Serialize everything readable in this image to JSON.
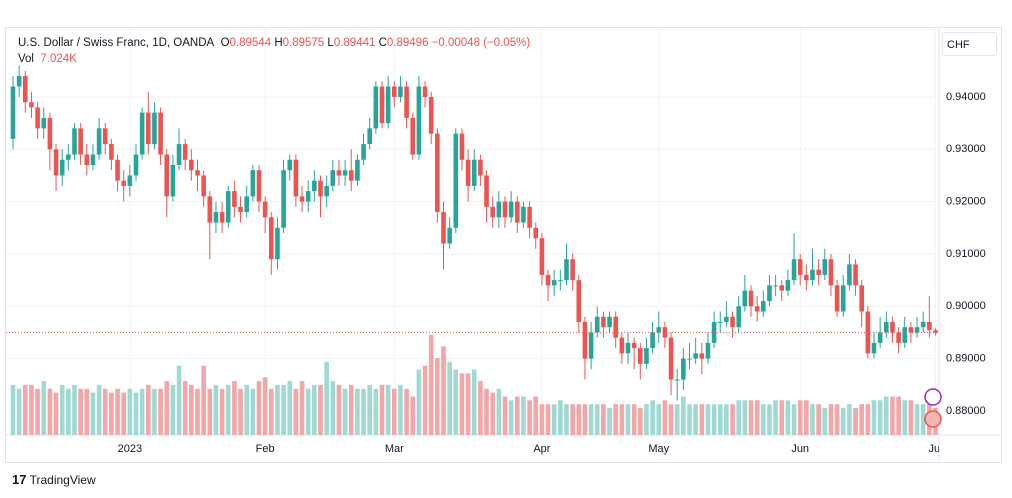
{
  "header": {
    "symbol": "U.S. Dollar / Swiss Franc, 1D, OANDA",
    "o_label": "O",
    "h_label": "H",
    "l_label": "L",
    "c_label": "C",
    "change": "−0.00048 (−0.05%)",
    "vol_label": "Vol",
    "vol_value": "7.024K",
    "currency": "CHF"
  },
  "footer": {
    "brand": "TradingView"
  },
  "chart_data": {
    "type": "candlestick",
    "categories": [
      null,
      null,
      null,
      null,
      null,
      null,
      null,
      null,
      null,
      null,
      null,
      null,
      null,
      null,
      null,
      null,
      null,
      null,
      null,
      "2023",
      null,
      null,
      null,
      null,
      null,
      null,
      null,
      null,
      null,
      null,
      null,
      null,
      null,
      null,
      null,
      null,
      null,
      null,
      null,
      null,
      null,
      "Feb",
      null,
      null,
      null,
      null,
      null,
      null,
      null,
      null,
      null,
      null,
      null,
      null,
      null,
      null,
      null,
      null,
      null,
      null,
      null,
      null,
      "Mar",
      null,
      null,
      null,
      null,
      null,
      null,
      null,
      null,
      null,
      null,
      null,
      null,
      null,
      null,
      null,
      null,
      null,
      null,
      null,
      null,
      null,
      null,
      null,
      "Apr",
      null,
      null,
      null,
      null,
      null,
      null,
      null,
      null,
      null,
      null,
      null,
      null,
      null,
      null,
      null,
      null,
      null,
      null,
      "May",
      null,
      null,
      null,
      null,
      null,
      null,
      null,
      null,
      null,
      null,
      null,
      null,
      null,
      null,
      null,
      null,
      null,
      null,
      null,
      null,
      null,
      null,
      "Jun",
      null,
      null,
      null,
      null,
      null,
      null,
      null,
      null,
      null,
      null,
      null,
      null,
      null,
      null,
      null,
      null,
      null,
      null,
      null,
      null,
      null,
      "Jul"
    ],
    "open": [
      0.932,
      0.942,
      0.944,
      0.939,
      0.938,
      0.934,
      0.936,
      0.93,
      0.925,
      0.928,
      0.929,
      0.934,
      0.929,
      0.927,
      0.929,
      0.934,
      0.931,
      0.928,
      0.924,
      0.923,
      0.925,
      0.929,
      0.937,
      0.931,
      0.937,
      0.929,
      0.921,
      0.927,
      0.931,
      0.928,
      0.926,
      0.925,
      0.921,
      0.916,
      0.918,
      0.916,
      0.922,
      0.919,
      0.918,
      0.921,
      0.926,
      0.92,
      0.917,
      0.909,
      0.915,
      0.926,
      0.928,
      0.921,
      0.92,
      0.922,
      0.924,
      0.921,
      0.923,
      0.926,
      0.925,
      0.926,
      0.924,
      0.928,
      0.931,
      0.934,
      0.942,
      0.935,
      0.942,
      0.94,
      0.942,
      0.936,
      0.929,
      0.942,
      0.94,
      0.933,
      0.918,
      0.912,
      0.915,
      0.933,
      0.928,
      0.923,
      0.928,
      0.925,
      0.919,
      0.917,
      0.92,
      0.917,
      0.92,
      0.916,
      0.919,
      0.915,
      0.913,
      0.906,
      0.904,
      0.905,
      0.905,
      0.909,
      0.905,
      0.897,
      0.89,
      0.895,
      0.898,
      0.896,
      0.898,
      0.894,
      0.891,
      0.893,
      0.892,
      0.889,
      0.892,
      0.895,
      0.896,
      0.894,
      0.886,
      0.886,
      0.89,
      0.89,
      0.891,
      0.89,
      0.893,
      0.897,
      0.897,
      0.898,
      0.896,
      0.9,
      0.903,
      0.9,
      0.899,
      0.901,
      0.904,
      0.904,
      0.903,
      0.905,
      0.909,
      0.906,
      0.905,
      0.907,
      0.906,
      0.909,
      0.904,
      0.899,
      0.904,
      0.908,
      0.904,
      0.899,
      0.891,
      0.893,
      0.895,
      0.897,
      0.895,
      0.893,
      0.896,
      0.895,
      0.896,
      0.897,
      0.89544
    ],
    "high": [
      0.944,
      0.946,
      0.945,
      0.941,
      0.939,
      0.938,
      0.937,
      0.931,
      0.93,
      0.931,
      0.935,
      0.935,
      0.931,
      0.931,
      0.936,
      0.935,
      0.932,
      0.929,
      0.926,
      0.927,
      0.931,
      0.938,
      0.941,
      0.939,
      0.938,
      0.93,
      0.929,
      0.934,
      0.932,
      0.93,
      0.928,
      0.926,
      0.922,
      0.92,
      0.92,
      0.923,
      0.924,
      0.921,
      0.923,
      0.927,
      0.927,
      0.921,
      0.918,
      0.917,
      0.928,
      0.929,
      0.929,
      0.923,
      0.924,
      0.926,
      0.925,
      0.925,
      0.928,
      0.928,
      0.928,
      0.93,
      0.929,
      0.933,
      0.936,
      0.943,
      0.943,
      0.944,
      0.943,
      0.944,
      0.943,
      0.937,
      0.944,
      0.943,
      0.941,
      0.934,
      0.92,
      0.917,
      0.934,
      0.934,
      0.93,
      0.93,
      0.929,
      0.926,
      0.921,
      0.922,
      0.921,
      0.922,
      0.921,
      0.92,
      0.92,
      0.916,
      0.914,
      0.907,
      0.907,
      0.907,
      0.912,
      0.91,
      0.906,
      0.898,
      0.897,
      0.9,
      0.899,
      0.899,
      0.899,
      0.895,
      0.895,
      0.894,
      0.893,
      0.894,
      0.897,
      0.899,
      0.897,
      0.895,
      0.888,
      0.892,
      0.893,
      0.894,
      0.893,
      0.895,
      0.899,
      0.899,
      0.901,
      0.899,
      0.902,
      0.906,
      0.904,
      0.902,
      0.903,
      0.906,
      0.906,
      0.905,
      0.907,
      0.914,
      0.91,
      0.908,
      0.911,
      0.909,
      0.911,
      0.91,
      0.905,
      0.906,
      0.91,
      0.909,
      0.905,
      0.9,
      0.895,
      0.898,
      0.899,
      0.898,
      0.896,
      0.898,
      0.897,
      0.898,
      0.899,
      0.902,
      0.89575
    ],
    "low": [
      0.93,
      0.94,
      0.937,
      0.936,
      0.932,
      0.932,
      0.926,
      0.922,
      0.923,
      0.926,
      0.928,
      0.927,
      0.925,
      0.926,
      0.928,
      0.929,
      0.926,
      0.922,
      0.92,
      0.921,
      0.924,
      0.928,
      0.929,
      0.93,
      0.927,
      0.917,
      0.92,
      0.926,
      0.926,
      0.924,
      0.922,
      0.919,
      0.909,
      0.914,
      0.914,
      0.915,
      0.917,
      0.916,
      0.917,
      0.92,
      0.918,
      0.914,
      0.906,
      0.907,
      0.914,
      0.924,
      0.919,
      0.918,
      0.918,
      0.92,
      0.917,
      0.919,
      0.922,
      0.923,
      0.923,
      0.922,
      0.923,
      0.927,
      0.93,
      0.933,
      0.934,
      0.934,
      0.938,
      0.939,
      0.934,
      0.928,
      0.928,
      0.938,
      0.931,
      0.916,
      0.907,
      0.911,
      0.914,
      0.926,
      0.92,
      0.922,
      0.923,
      0.916,
      0.915,
      0.915,
      0.915,
      0.916,
      0.914,
      0.915,
      0.913,
      0.911,
      0.904,
      0.901,
      0.902,
      0.903,
      0.904,
      0.903,
      0.895,
      0.886,
      0.888,
      0.894,
      0.894,
      0.895,
      0.892,
      0.889,
      0.889,
      0.888,
      0.886,
      0.888,
      0.891,
      0.893,
      0.892,
      0.883,
      0.882,
      0.884,
      0.888,
      0.889,
      0.887,
      0.889,
      0.892,
      0.895,
      0.896,
      0.894,
      0.895,
      0.899,
      0.898,
      0.897,
      0.898,
      0.9,
      0.902,
      0.901,
      0.902,
      0.904,
      0.904,
      0.903,
      0.904,
      0.904,
      0.905,
      0.902,
      0.898,
      0.898,
      0.903,
      0.902,
      0.896,
      0.89,
      0.89,
      0.892,
      0.894,
      0.893,
      0.891,
      0.892,
      0.893,
      0.894,
      0.895,
      0.894,
      0.89441
    ],
    "close": [
      0.942,
      0.944,
      0.939,
      0.938,
      0.934,
      0.936,
      0.93,
      0.925,
      0.928,
      0.929,
      0.934,
      0.929,
      0.927,
      0.929,
      0.934,
      0.931,
      0.928,
      0.924,
      0.923,
      0.925,
      0.929,
      0.937,
      0.931,
      0.937,
      0.929,
      0.921,
      0.927,
      0.931,
      0.928,
      0.926,
      0.925,
      0.921,
      0.916,
      0.918,
      0.916,
      0.922,
      0.919,
      0.918,
      0.921,
      0.926,
      0.92,
      0.917,
      0.909,
      0.915,
      0.926,
      0.928,
      0.921,
      0.92,
      0.922,
      0.924,
      0.921,
      0.923,
      0.926,
      0.925,
      0.926,
      0.924,
      0.928,
      0.931,
      0.934,
      0.942,
      0.935,
      0.942,
      0.94,
      0.942,
      0.936,
      0.929,
      0.942,
      0.94,
      0.933,
      0.918,
      0.912,
      0.915,
      0.933,
      0.928,
      0.923,
      0.928,
      0.925,
      0.919,
      0.917,
      0.92,
      0.917,
      0.92,
      0.916,
      0.919,
      0.915,
      0.913,
      0.906,
      0.904,
      0.905,
      0.905,
      0.909,
      0.905,
      0.897,
      0.89,
      0.895,
      0.898,
      0.896,
      0.898,
      0.894,
      0.891,
      0.893,
      0.892,
      0.889,
      0.892,
      0.895,
      0.896,
      0.894,
      0.886,
      0.886,
      0.89,
      0.89,
      0.891,
      0.89,
      0.893,
      0.897,
      0.897,
      0.898,
      0.896,
      0.9,
      0.903,
      0.9,
      0.899,
      0.901,
      0.904,
      0.904,
      0.903,
      0.905,
      0.909,
      0.906,
      0.905,
      0.907,
      0.906,
      0.909,
      0.904,
      0.899,
      0.904,
      0.908,
      0.904,
      0.899,
      0.891,
      0.893,
      0.895,
      0.897,
      0.895,
      0.893,
      0.896,
      0.895,
      0.896,
      0.897,
      0.89544,
      0.89496
    ],
    "volume": [
      13,
      12,
      13,
      13,
      12,
      14,
      12,
      11,
      13,
      12,
      13,
      12,
      12,
      11,
      13,
      12,
      11,
      12,
      11,
      12,
      11,
      12,
      13,
      12,
      12,
      14,
      13,
      18,
      14,
      13,
      12,
      18,
      12,
      13,
      12,
      13,
      14,
      12,
      13,
      12,
      14,
      15,
      12,
      13,
      13,
      14,
      12,
      14,
      12,
      13,
      13,
      19,
      14,
      13,
      12,
      13,
      12,
      12,
      13,
      12,
      13,
      13,
      12,
      13,
      12,
      10,
      17,
      18,
      26,
      20,
      23,
      19,
      17,
      16,
      16,
      17,
      14,
      12,
      11,
      12,
      10,
      9,
      10,
      10,
      9,
      10,
      8,
      8,
      8,
      9,
      8,
      8,
      8,
      8,
      8,
      8,
      8,
      7,
      8,
      8,
      8,
      8,
      7,
      8,
      9,
      8,
      9,
      8,
      8,
      10,
      8,
      8,
      8,
      8,
      8,
      8,
      8,
      8,
      9,
      9,
      9,
      9,
      8,
      8,
      9,
      9,
      9,
      8,
      9,
      9,
      8,
      8,
      7,
      8,
      8,
      7,
      8,
      7,
      8,
      8,
      9,
      9,
      10,
      10,
      10,
      9,
      9,
      8,
      8,
      8,
      7.024
    ],
    "up_color": "#26a69a",
    "down_color": "#ef5350",
    "volume_up_color": "#9fd9d3",
    "volume_down_color": "#f5a5a5",
    "ylim": [
      0.8754,
      0.9528
    ],
    "yticks": [
      {
        "value": 0.88,
        "label": "0.88000"
      },
      {
        "value": 0.89,
        "label": "0.89000"
      },
      {
        "value": 0.9,
        "label": "0.90000"
      },
      {
        "value": 0.91,
        "label": "0.91000"
      },
      {
        "value": 0.92,
        "label": "0.92000"
      },
      {
        "value": 0.93,
        "label": "0.93000"
      },
      {
        "value": 0.94,
        "label": "0.94000"
      }
    ],
    "volume_ylim": [
      0,
      27
    ],
    "grid": true,
    "last_price_line": true
  }
}
